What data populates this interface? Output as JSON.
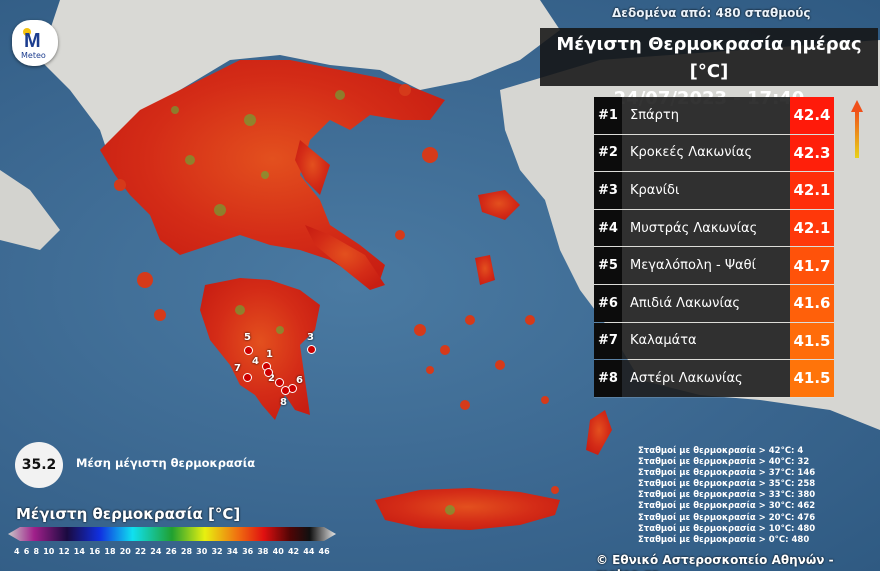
{
  "header": {
    "stations_info": "Δεδομένα από: 480 σταθμούς",
    "title": "Μέγιστη Θερμοκρασία ημέρας [°C]",
    "datetime": "24/07/2023 - 17:40"
  },
  "logo": {
    "text": "Meteo"
  },
  "ranking": [
    {
      "rank": "#1",
      "station": "Σπάρτη",
      "value": "42.4",
      "color": "#ff1a0a"
    },
    {
      "rank": "#2",
      "station": "Κροκεές Λακωνίας",
      "value": "42.3",
      "color": "#ff1f0a"
    },
    {
      "rank": "#3",
      "station": "Κρανίδι",
      "value": "42.1",
      "color": "#ff2e0a"
    },
    {
      "rank": "#4",
      "station": "Μυστράς Λακωνίας",
      "value": "42.1",
      "color": "#ff380a"
    },
    {
      "rank": "#5",
      "station": "Μεγαλόπολη - Ψαθί",
      "value": "41.7",
      "color": "#ff520a"
    },
    {
      "rank": "#6",
      "station": "Απιδιά Λακωνίας",
      "value": "41.6",
      "color": "#ff600a"
    },
    {
      "rank": "#7",
      "station": "Καλαμάτα",
      "value": "41.5",
      "color": "#ff6c0a"
    },
    {
      "rank": "#8",
      "station": "Αστέρι Λακωνίας",
      "value": "41.5",
      "color": "#ff740a"
    }
  ],
  "map_markers": [
    "1",
    "2",
    "3",
    "4",
    "5",
    "6",
    "7",
    "8"
  ],
  "average": {
    "value": "35.2",
    "label": "Μέση μέγιστη θερμοκρασία"
  },
  "legend": {
    "title": "Μέγιστη θερμοκρασία  [°C]",
    "ticks": [
      "4",
      "6",
      "8",
      "10",
      "12",
      "14",
      "16",
      "18",
      "20",
      "22",
      "24",
      "26",
      "28",
      "30",
      "32",
      "34",
      "36",
      "38",
      "40",
      "42",
      "44",
      "46"
    ]
  },
  "station_counts": [
    "Σταθμοί με θερμοκρασία > 42°C: 4",
    "Σταθμοί με θερμοκρασία > 40°C: 32",
    "Σταθμοί με θερμοκρασία > 37°C: 146",
    "Σταθμοί με θερμοκρασία > 35°C: 258",
    "Σταθμοί με θερμοκρασία > 33°C: 380",
    "Σταθμοί με θερμοκρασία > 30°C: 462",
    "Σταθμοί με θερμοκρασία > 20°C: 476",
    "Σταθμοί με θερμοκρασία > 10°C: 480",
    "Σταθμοί με θερμοκρασία > 0°C: 480"
  ],
  "copyright": "© Εθνικό Αστεροσκοπείο Αθηνών - meteo.gr",
  "colors": {
    "sea": "#3b6891",
    "land_foreign": "#d8d8d4",
    "land_hot": "#d9321b"
  }
}
